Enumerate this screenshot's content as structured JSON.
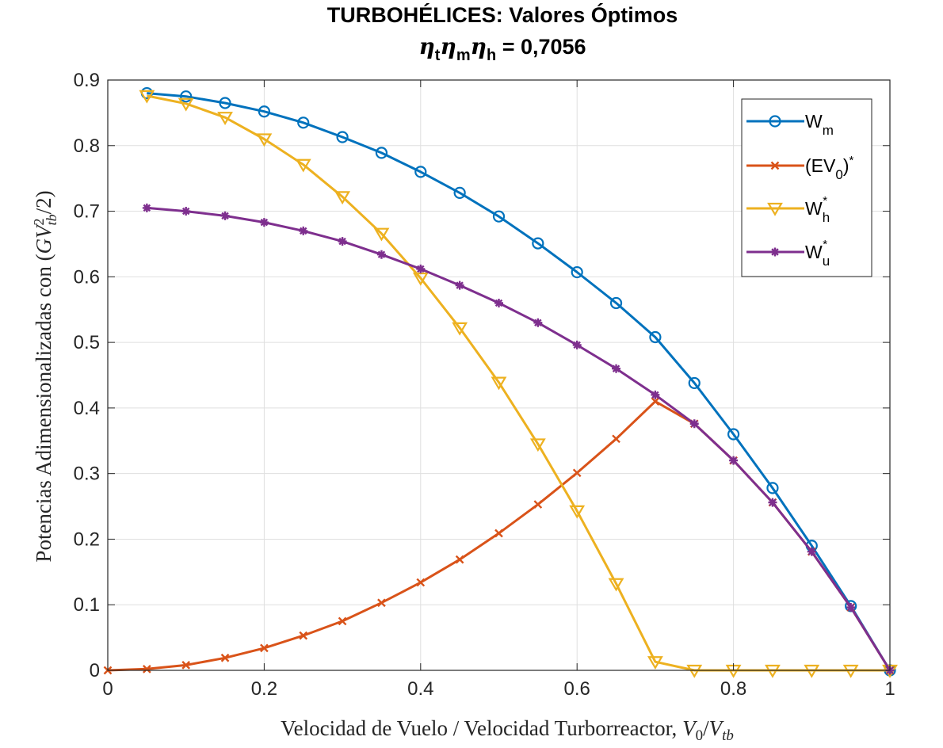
{
  "chart_data": {
    "type": "line",
    "title": "TURBOHÉLICES: Valores Óptimos",
    "subtitle": {
      "eta_t": "η",
      "t": "t",
      "eta_m": "η",
      "m": "m",
      "eta_h": "η",
      "h": "h",
      "value": " = 0,7056"
    },
    "xlabel": {
      "text": "Velocidad de Vuelo / Velocidad Turborreactor, ",
      "var1": "V",
      "sub1": "0",
      "slash": "/",
      "var2": "V",
      "sub2": "tb"
    },
    "ylabel": {
      "text": "Potencias Adimensionalizadas con (",
      "var1": "GV",
      "sup": "2",
      "sub": "tb",
      "tail": "/2)"
    },
    "xlim": [
      0,
      1
    ],
    "ylim": [
      0,
      0.9
    ],
    "xticks": [
      0,
      0.2,
      0.4,
      0.6,
      0.8,
      1
    ],
    "xtick_labels": [
      "0",
      "0.2",
      "0.4",
      "0.6",
      "0.8",
      "1"
    ],
    "yticks": [
      0,
      0.1,
      0.2,
      0.3,
      0.4,
      0.5,
      0.6,
      0.7,
      0.8,
      0.9
    ],
    "ytick_labels": [
      "0",
      "0.1",
      "0.2",
      "0.3",
      "0.4",
      "0.5",
      "0.6",
      "0.7",
      "0.8",
      "0.9"
    ],
    "grid": true,
    "legend_position": "top-right",
    "series": [
      {
        "key": "wm",
        "name": "W",
        "sub": "m",
        "sup": "",
        "color": "#0072BD",
        "marker": "circle",
        "x": [
          0.05,
          0.1,
          0.15,
          0.2,
          0.25,
          0.3,
          0.35,
          0.4,
          0.45,
          0.5,
          0.55,
          0.6,
          0.65,
          0.7,
          0.75,
          0.8,
          0.85,
          0.9,
          0.95,
          1.0
        ],
        "y": [
          0.88,
          0.875,
          0.865,
          0.852,
          0.835,
          0.813,
          0.789,
          0.76,
          0.728,
          0.692,
          0.651,
          0.607,
          0.56,
          0.508,
          0.438,
          0.36,
          0.278,
          0.19,
          0.098,
          0.0
        ]
      },
      {
        "key": "ev0",
        "name": "(EV",
        "sub": "0",
        "sup": "*",
        "close": ")",
        "color": "#D95319",
        "marker": "x",
        "x": [
          0,
          0.05,
          0.1,
          0.15,
          0.2,
          0.25,
          0.3,
          0.35,
          0.4,
          0.45,
          0.5,
          0.55,
          0.6,
          0.65,
          0.7,
          0.75,
          0.8,
          0.85,
          0.9,
          0.95,
          1.0
        ],
        "y": [
          0.0,
          0.002,
          0.008,
          0.019,
          0.034,
          0.053,
          0.075,
          0.103,
          0.134,
          0.169,
          0.209,
          0.253,
          0.301,
          0.353,
          0.41,
          0.376,
          0.32,
          0.256,
          0.181,
          0.096,
          0.0
        ]
      },
      {
        "key": "wh",
        "name": "W",
        "sub": "h",
        "sup": "*",
        "color": "#EDB120",
        "marker": "triangle-down",
        "x": [
          0.05,
          0.1,
          0.15,
          0.2,
          0.25,
          0.3,
          0.35,
          0.4,
          0.45,
          0.5,
          0.55,
          0.6,
          0.65,
          0.7,
          0.75,
          0.8,
          0.85,
          0.9,
          0.95,
          1.0
        ],
        "y": [
          0.876,
          0.864,
          0.843,
          0.81,
          0.771,
          0.722,
          0.666,
          0.598,
          0.522,
          0.439,
          0.345,
          0.243,
          0.132,
          0.013,
          0.0,
          0.0,
          0.0,
          0.0,
          0.0,
          0.0
        ]
      },
      {
        "key": "wu",
        "name": "W",
        "sub": "u",
        "sup": "*",
        "color": "#7E2F8E",
        "marker": "asterisk",
        "x": [
          0.05,
          0.1,
          0.15,
          0.2,
          0.25,
          0.3,
          0.35,
          0.4,
          0.45,
          0.5,
          0.55,
          0.6,
          0.65,
          0.7,
          0.75,
          0.8,
          0.85,
          0.9,
          0.95,
          1.0
        ],
        "y": [
          0.705,
          0.7,
          0.693,
          0.683,
          0.67,
          0.654,
          0.634,
          0.612,
          0.587,
          0.56,
          0.53,
          0.496,
          0.46,
          0.42,
          0.376,
          0.32,
          0.256,
          0.181,
          0.096,
          0.0
        ]
      }
    ]
  }
}
